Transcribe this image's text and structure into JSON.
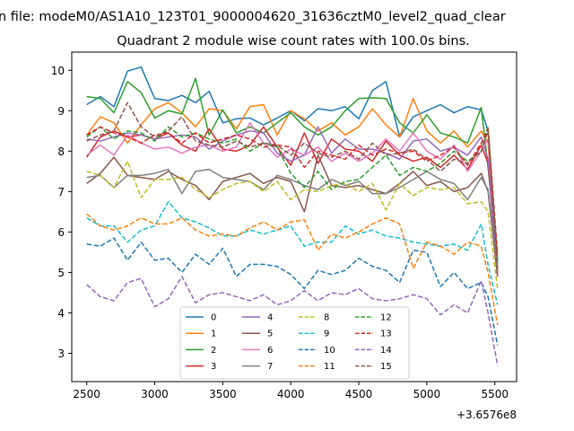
{
  "figure": {
    "suptitle": "n file: modeM0/AS1A10_123T01_9000004620_31636cztM0_level2_quad_clear",
    "x_offset_label": "+3.6576e8"
  },
  "chart_data": {
    "type": "line",
    "title": "Quadrant 2 module wise count rates with 100.0s bins.",
    "xlabel": "",
    "ylabel": "",
    "xlim": [
      2390,
      5660
    ],
    "ylim": [
      2.3,
      10.45
    ],
    "x_ticks": [
      2500,
      3000,
      3500,
      4000,
      4500,
      5000,
      5500
    ],
    "y_ticks": [
      3,
      4,
      5,
      6,
      7,
      8,
      9,
      10
    ],
    "grid": false,
    "legend": {
      "placement": "lower-center",
      "columns": 4
    },
    "x": [
      2500,
      2600,
      2700,
      2800,
      2900,
      3000,
      3100,
      3200,
      3300,
      3400,
      3500,
      3600,
      3700,
      3800,
      3900,
      4000,
      4100,
      4200,
      4300,
      4400,
      4500,
      4600,
      4700,
      4800,
      4900,
      5000,
      5100,
      5200,
      5300,
      5400,
      5450,
      5520
    ],
    "series": [
      {
        "name": "0",
        "color": "#1f77b4",
        "dash": "solid",
        "values": [
          9.15,
          9.35,
          9.1,
          9.98,
          10.08,
          9.3,
          9.25,
          9.38,
          9.2,
          9.48,
          8.7,
          8.8,
          8.82,
          8.65,
          8.82,
          9.0,
          8.75,
          9.05,
          9.0,
          9.1,
          8.8,
          9.5,
          9.72,
          8.35,
          8.85,
          9.0,
          9.15,
          8.95,
          9.1,
          9.02,
          8.5,
          5.2
        ]
      },
      {
        "name": "1",
        "color": "#ff7f0e",
        "dash": "solid",
        "values": [
          8.4,
          8.85,
          8.7,
          8.2,
          8.65,
          9.05,
          9.2,
          8.95,
          8.6,
          9.05,
          9.0,
          8.55,
          9.1,
          9.15,
          8.4,
          9.0,
          8.8,
          8.5,
          8.7,
          8.4,
          8.6,
          9.05,
          8.65,
          8.35,
          9.3,
          8.5,
          8.2,
          8.5,
          8.1,
          8.5,
          8.2,
          5.1
        ]
      },
      {
        "name": "2",
        "color": "#2ca02c",
        "dash": "solid",
        "values": [
          9.35,
          9.3,
          8.95,
          9.72,
          9.45,
          8.82,
          9.0,
          8.92,
          9.8,
          8.4,
          9.02,
          8.45,
          8.6,
          8.45,
          8.7,
          8.95,
          8.6,
          8.4,
          8.6,
          9.0,
          9.3,
          9.32,
          9.3,
          8.7,
          8.45,
          8.9,
          8.45,
          8.35,
          8.2,
          9.08,
          7.6,
          5.3
        ]
      },
      {
        "name": "3",
        "color": "#d62728",
        "dash": "solid",
        "values": [
          7.85,
          8.35,
          8.5,
          8.35,
          8.4,
          8.3,
          8.45,
          8.15,
          8.0,
          8.55,
          8.05,
          8.0,
          8.15,
          8.6,
          8.1,
          7.65,
          8.45,
          7.7,
          8.3,
          8.05,
          8.0,
          7.75,
          8.25,
          7.9,
          7.75,
          7.85,
          7.6,
          7.9,
          7.55,
          8.15,
          7.7,
          4.95
        ]
      },
      {
        "name": "4",
        "color": "#9467bd",
        "dash": "solid",
        "values": [
          8.3,
          8.25,
          8.35,
          8.45,
          8.4,
          8.3,
          8.35,
          8.4,
          8.35,
          8.05,
          8.25,
          8.4,
          8.5,
          8.45,
          7.95,
          7.75,
          7.9,
          8.6,
          7.95,
          8.3,
          8.05,
          8.05,
          7.95,
          7.8,
          8.25,
          8.3,
          8.0,
          8.1,
          7.9,
          8.35,
          7.8,
          5.0
        ]
      },
      {
        "name": "5",
        "color": "#8c564b",
        "dash": "solid",
        "values": [
          7.2,
          7.45,
          7.85,
          7.4,
          7.35,
          7.3,
          7.5,
          7.3,
          7.15,
          6.8,
          7.25,
          7.35,
          7.45,
          7.2,
          7.35,
          7.25,
          6.5,
          7.9,
          7.15,
          7.1,
          7.15,
          7.05,
          6.95,
          7.2,
          7.5,
          7.15,
          7.25,
          7.0,
          7.1,
          7.45,
          7.0,
          4.9
        ]
      },
      {
        "name": "6",
        "color": "#e377c2",
        "dash": "solid",
        "values": [
          7.9,
          8.15,
          7.9,
          8.4,
          8.2,
          8.05,
          8.1,
          7.95,
          8.1,
          8.15,
          8.0,
          8.1,
          8.7,
          8.2,
          7.85,
          8.05,
          7.9,
          8.1,
          7.75,
          7.95,
          7.75,
          7.95,
          8.3,
          8.0,
          8.45,
          8.0,
          7.8,
          8.15,
          7.5,
          8.0,
          8.3,
          5.4
        ]
      },
      {
        "name": "7",
        "color": "#7f7f7f",
        "dash": "solid",
        "values": [
          7.35,
          7.4,
          7.1,
          7.4,
          7.4,
          7.45,
          7.55,
          6.95,
          7.5,
          7.55,
          7.35,
          7.3,
          7.25,
          7.05,
          7.4,
          7.3,
          7.15,
          7.05,
          7.3,
          7.15,
          7.25,
          6.95,
          6.95,
          7.1,
          7.3,
          7.5,
          7.3,
          7.2,
          6.8,
          7.35,
          7.05,
          5.05
        ]
      },
      {
        "name": "8",
        "color": "#bcbd22",
        "dash": "dashed",
        "values": [
          7.5,
          7.4,
          7.1,
          7.75,
          6.85,
          7.3,
          7.3,
          7.35,
          7.05,
          6.85,
          7.05,
          7.2,
          7.25,
          7.0,
          7.25,
          6.8,
          7.05,
          7.0,
          7.15,
          7.2,
          7.0,
          7.2,
          6.55,
          7.2,
          6.9,
          7.1,
          7.05,
          7.1,
          6.7,
          6.75,
          6.5,
          4.6
        ]
      },
      {
        "name": "9",
        "color": "#17becf",
        "dash": "dashed",
        "values": [
          6.35,
          6.15,
          6.15,
          5.75,
          6.05,
          6.15,
          6.75,
          6.35,
          6.25,
          6.1,
          5.9,
          5.9,
          6.05,
          5.95,
          6.05,
          6.15,
          5.65,
          5.75,
          5.75,
          6.15,
          5.95,
          6.05,
          5.9,
          5.85,
          5.75,
          5.7,
          5.65,
          5.7,
          5.55,
          6.2,
          5.2,
          4.2
        ]
      },
      {
        "name": "10",
        "color": "#1f77b4",
        "dash": "dashed",
        "values": [
          5.7,
          5.65,
          5.85,
          5.3,
          5.75,
          5.3,
          5.35,
          5.0,
          5.45,
          5.2,
          5.6,
          4.9,
          5.2,
          5.2,
          5.15,
          4.95,
          4.6,
          5.05,
          4.95,
          5.05,
          5.35,
          5.15,
          5.05,
          4.75,
          5.55,
          5.5,
          4.65,
          5.0,
          4.6,
          4.75,
          4.4,
          3.2
        ]
      },
      {
        "name": "11",
        "color": "#ff7f0e",
        "dash": "dashed",
        "values": [
          6.45,
          6.15,
          6.05,
          6.15,
          6.35,
          6.2,
          6.2,
          6.35,
          6.05,
          5.9,
          5.95,
          5.9,
          6.1,
          6.25,
          6.05,
          6.25,
          6.3,
          5.55,
          5.95,
          5.85,
          6.0,
          6.2,
          6.35,
          6.2,
          5.1,
          5.75,
          5.65,
          5.45,
          5.75,
          5.65,
          5.0,
          3.7
        ]
      },
      {
        "name": "12",
        "color": "#2ca02c",
        "dash": "dashed",
        "values": [
          8.35,
          8.6,
          8.3,
          8.5,
          8.45,
          8.25,
          8.6,
          8.35,
          8.45,
          8.3,
          8.2,
          8.3,
          8.0,
          8.2,
          8.1,
          7.45,
          7.1,
          7.5,
          7.05,
          7.25,
          7.3,
          7.6,
          7.9,
          7.4,
          7.6,
          7.5,
          7.7,
          8.0,
          7.75,
          8.0,
          8.6,
          5.3
        ]
      },
      {
        "name": "13",
        "color": "#d62728",
        "dash": "dashed",
        "values": [
          8.4,
          8.6,
          8.45,
          8.35,
          8.2,
          8.4,
          8.45,
          8.2,
          8.45,
          8.2,
          8.3,
          8.4,
          8.3,
          8.1,
          8.15,
          8.1,
          7.6,
          8.0,
          7.9,
          7.8,
          8.15,
          7.9,
          8.05,
          7.95,
          8.0,
          7.75,
          7.9,
          8.1,
          7.65,
          8.2,
          8.55,
          5.45
        ]
      },
      {
        "name": "14",
        "color": "#9467bd",
        "dash": "dashed",
        "values": [
          4.7,
          4.4,
          4.3,
          4.75,
          4.85,
          4.15,
          4.35,
          4.9,
          4.25,
          4.45,
          4.5,
          4.4,
          4.3,
          4.45,
          4.2,
          4.3,
          4.55,
          4.3,
          4.5,
          4.45,
          4.6,
          4.35,
          4.3,
          4.35,
          4.45,
          4.35,
          3.95,
          4.2,
          4.0,
          4.8,
          4.0,
          2.7
        ]
      },
      {
        "name": "15",
        "color": "#8c564b",
        "dash": "dashed",
        "values": [
          8.25,
          8.4,
          8.5,
          9.2,
          8.6,
          8.35,
          8.5,
          8.85,
          8.25,
          8.15,
          8.1,
          8.25,
          8.1,
          8.2,
          8.15,
          7.9,
          8.2,
          7.95,
          7.85,
          8.0,
          7.8,
          8.2,
          7.9,
          7.95,
          8.05,
          7.8,
          7.5,
          7.8,
          7.7,
          8.0,
          8.5,
          5.1
        ]
      }
    ]
  }
}
